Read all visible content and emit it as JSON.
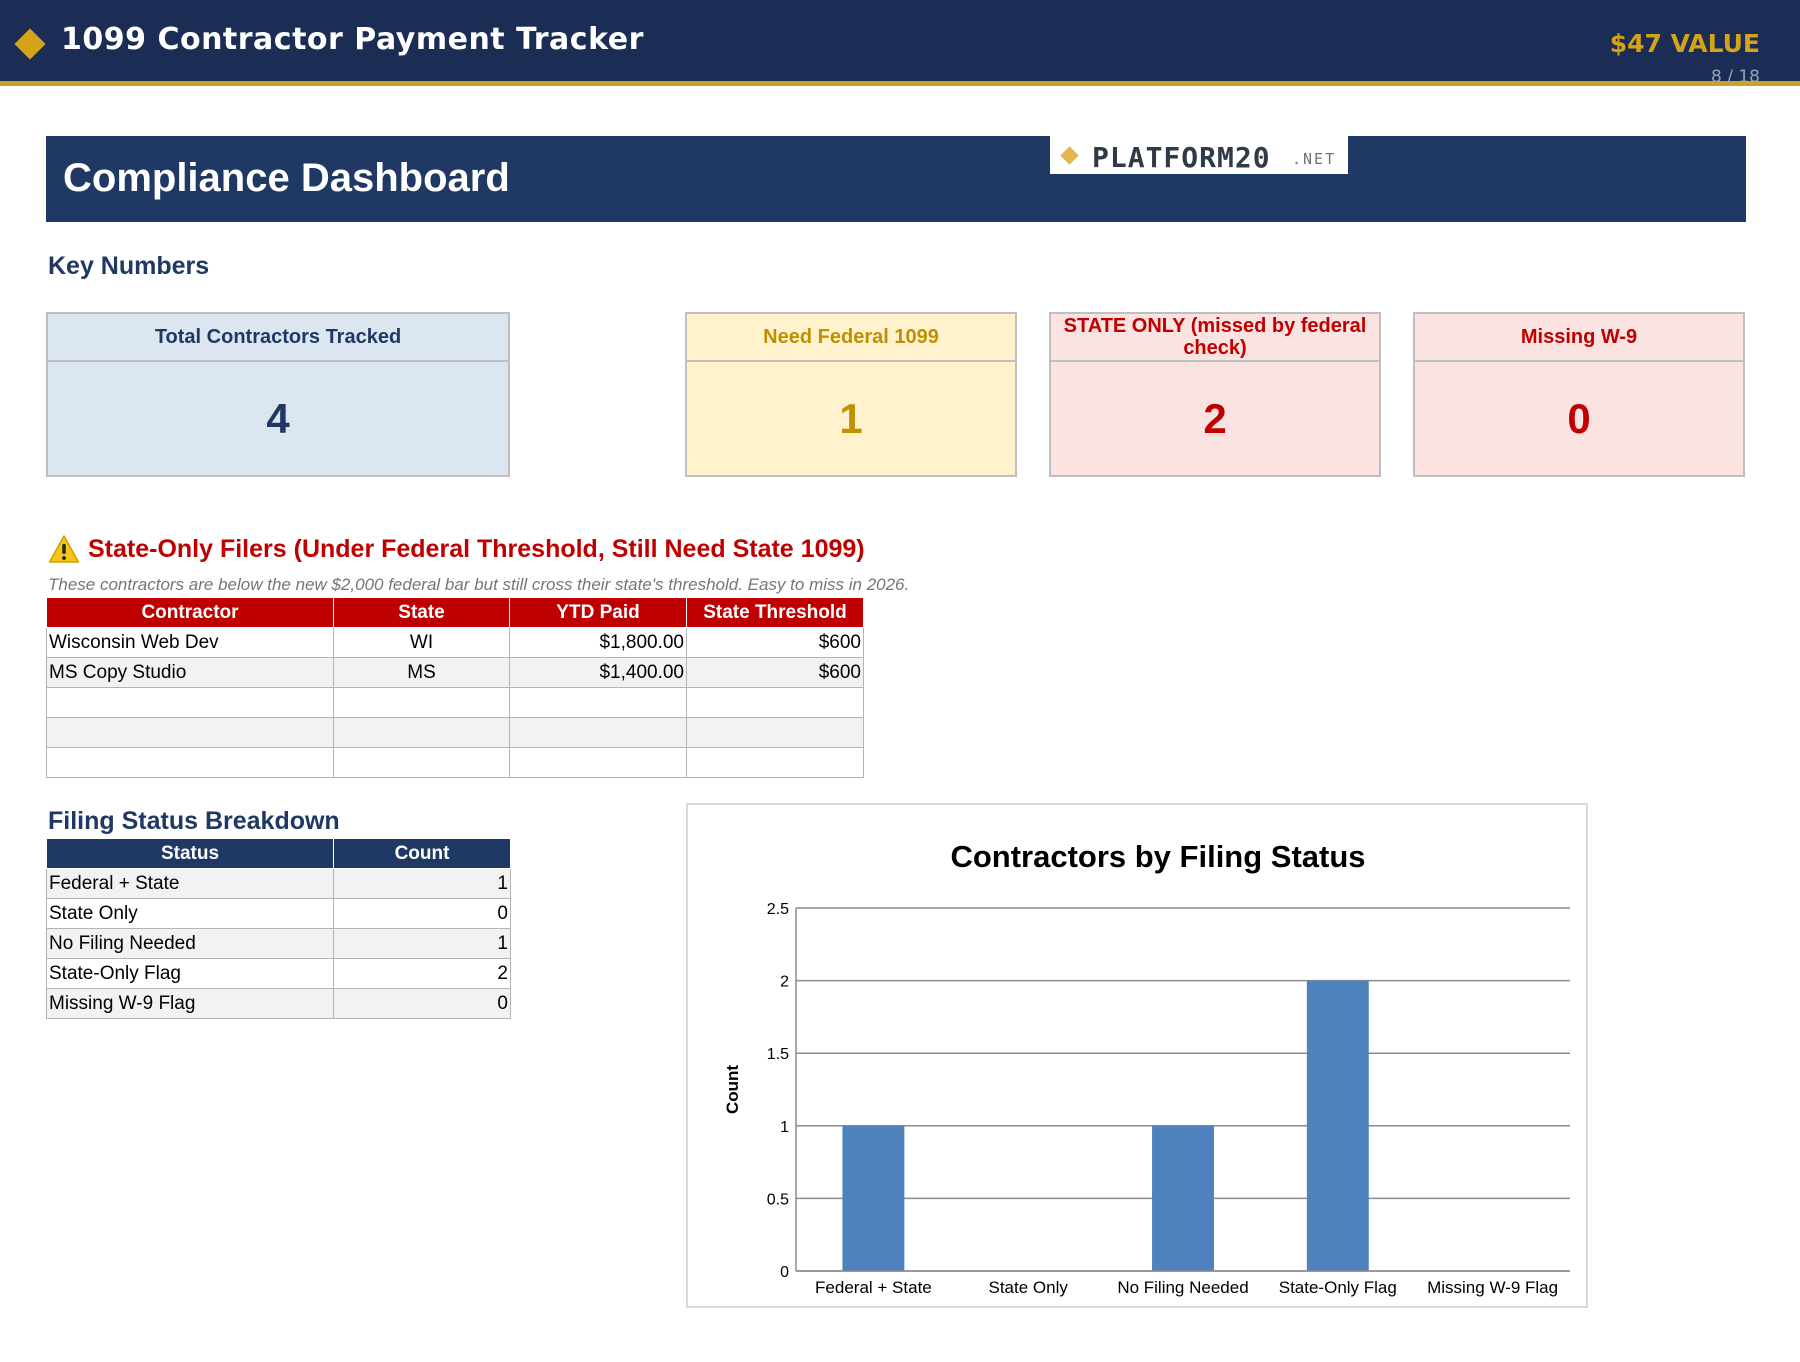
{
  "topbar": {
    "title": "1099 Contractor Payment Tracker",
    "value_badge": "$47 VALUE",
    "page_indicator": "8 / 18",
    "accent_color": "#d3a318",
    "bg_color": "#1b2d55"
  },
  "logo": {
    "name": "PLATFORM20",
    "tld": ".NET"
  },
  "header": {
    "title": "Compliance Dashboard"
  },
  "key_numbers": {
    "heading": "Key Numbers",
    "cards": [
      {
        "label": "Total Contractors Tracked",
        "value": "4",
        "color": "#1f3864"
      },
      {
        "label": "Need Federal 1099",
        "value": "1",
        "color": "#bf9000"
      },
      {
        "label": "STATE ONLY (missed by federal check)",
        "value": "2",
        "color": "#c00000"
      },
      {
        "label": "Missing W-9",
        "value": "0",
        "color": "#c00000"
      }
    ]
  },
  "state_only": {
    "icon": "warning-icon",
    "heading": "State-Only Filers (Under Federal Threshold, Still Need State 1099)",
    "note": "These contractors are below the new $2,000 federal bar but still cross their state's threshold. Easy to miss in 2026.",
    "columns": [
      "Contractor",
      "State",
      "YTD Paid",
      "State Threshold"
    ],
    "rows": [
      {
        "contractor": "Wisconsin Web Dev",
        "state": "WI",
        "ytd_paid": "$1,800.00",
        "threshold": "$600"
      },
      {
        "contractor": "MS Copy Studio",
        "state": "MS",
        "ytd_paid": "$1,400.00",
        "threshold": "$600"
      },
      {
        "contractor": "",
        "state": "",
        "ytd_paid": "",
        "threshold": ""
      },
      {
        "contractor": "",
        "state": "",
        "ytd_paid": "",
        "threshold": ""
      },
      {
        "contractor": "",
        "state": "",
        "ytd_paid": "",
        "threshold": ""
      }
    ]
  },
  "filing_status": {
    "heading": "Filing Status Breakdown",
    "columns": [
      "Status",
      "Count"
    ],
    "rows": [
      {
        "status": "Federal + State",
        "count": "1"
      },
      {
        "status": "State Only",
        "count": "0"
      },
      {
        "status": "No Filing Needed",
        "count": "1"
      },
      {
        "status": "State-Only Flag",
        "count": "2"
      },
      {
        "status": "Missing W-9 Flag",
        "count": "0"
      }
    ]
  },
  "chart_data": {
    "type": "bar",
    "title": "Contractors by Filing Status",
    "xlabel": "",
    "ylabel": "Count",
    "categories": [
      "Federal + State",
      "State Only",
      "No Filing Needed",
      "State-Only Flag",
      "Missing W-9 Flag"
    ],
    "values": [
      1,
      0,
      1,
      2,
      0
    ],
    "ylim": [
      0,
      2.5
    ],
    "yticks": [
      0,
      0.5,
      1,
      1.5,
      2,
      2.5
    ],
    "ytick_labels": [
      "0",
      "0.5",
      "1",
      "1.5",
      "2",
      "2.5"
    ],
    "grid": true,
    "legend": "none",
    "bar_color": "#4f81bd"
  }
}
